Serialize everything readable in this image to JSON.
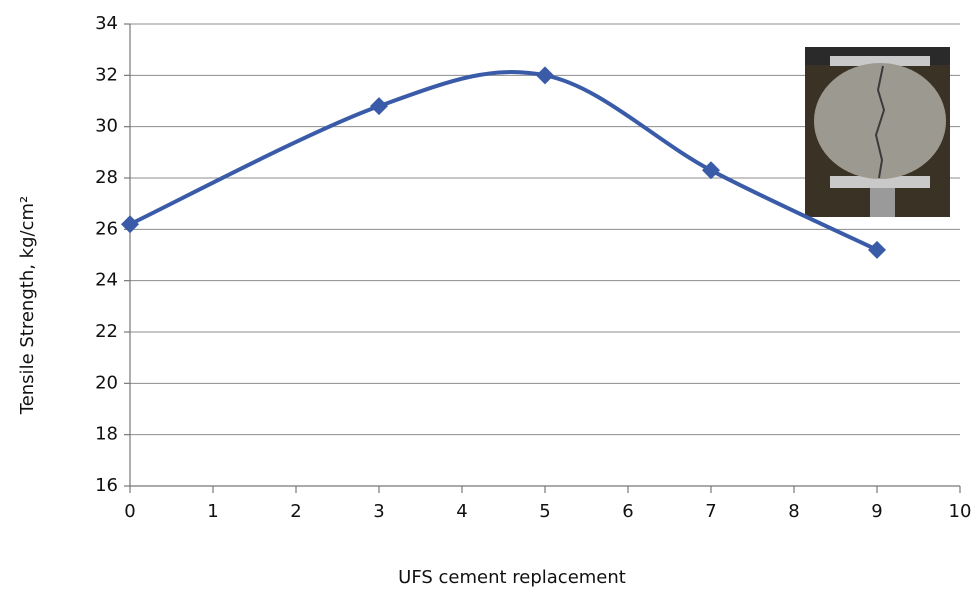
{
  "chart_data": {
    "type": "line",
    "x_label": "UFS cement replacement",
    "y_label": "Tensile Strength, kg/cm²",
    "x": [
      0,
      3,
      5,
      7,
      9
    ],
    "values": [
      26.2,
      30.8,
      32,
      28.3,
      25.2
    ],
    "color": "#3a5ba8",
    "smooth": true,
    "xlim": [
      0,
      10
    ],
    "xticks": [
      0,
      1,
      2,
      3,
      4,
      5,
      6,
      7,
      8,
      9,
      10
    ],
    "ylim": [
      16,
      34
    ],
    "yticks": [
      16,
      18,
      20,
      22,
      24,
      26,
      28,
      30,
      32,
      34
    ],
    "grid": true
  }
}
